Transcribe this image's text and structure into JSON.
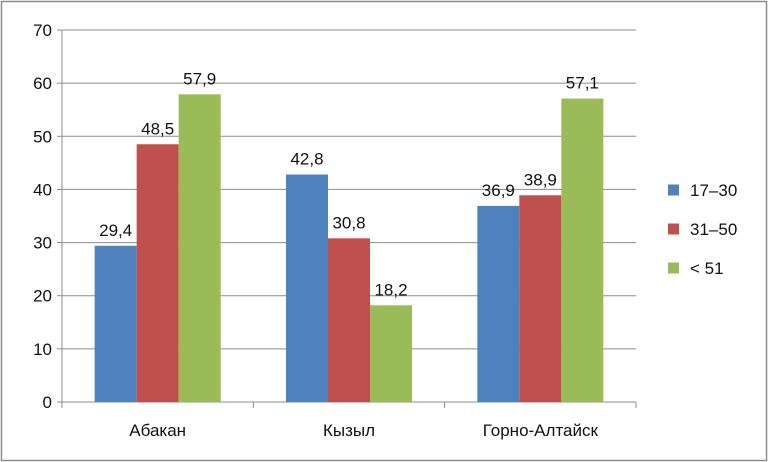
{
  "chart_data": {
    "type": "bar",
    "title": "",
    "xlabel": "",
    "ylabel": "",
    "ylim": [
      0,
      70
    ],
    "yticks": [
      0,
      10,
      20,
      30,
      40,
      50,
      60,
      70
    ],
    "grid": true,
    "legend_position": "right",
    "categories": [
      "Абакан",
      "Кызыл",
      "Горно-Алтайск"
    ],
    "series": [
      {
        "name": "17–30",
        "color": "#4F81BD",
        "values": [
          29.4,
          42.8,
          36.9
        ],
        "labels": [
          "29,4",
          "42,8",
          "36,9"
        ]
      },
      {
        "name": "31–50",
        "color": "#C0504D",
        "values": [
          48.5,
          30.8,
          38.9
        ],
        "labels": [
          "48,5",
          "30,8",
          "38,9"
        ]
      },
      {
        "name": "< 51",
        "color": "#9BBB59",
        "values": [
          57.9,
          18.2,
          57.1
        ],
        "labels": [
          "57,9",
          "18,2",
          "57,1"
        ]
      }
    ]
  }
}
